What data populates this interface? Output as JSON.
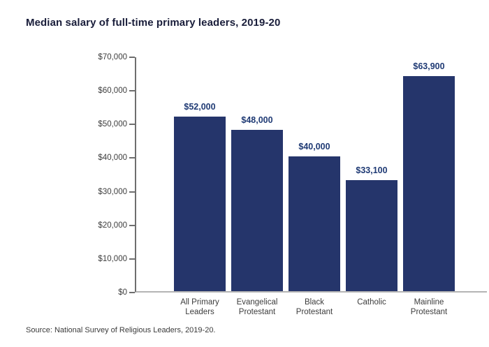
{
  "chart": {
    "title": "Median salary of full-time primary leaders, 2019-20",
    "source": "Source: National Survey of Religious Leaders, 2019-20."
  },
  "chart_data": {
    "type": "bar",
    "title": "Median salary of full-time primary leaders, 2019-20",
    "categories": [
      "All Primary Leaders",
      "Evangelical Protestant",
      "Black Protestant",
      "Catholic",
      "Mainline Protestant"
    ],
    "category_label_lines": [
      [
        "All Primary",
        "Leaders"
      ],
      [
        "Evangelical",
        "Protestant"
      ],
      [
        "Black",
        "Protestant"
      ],
      [
        "Catholic"
      ],
      [
        "Mainline",
        "Protestant"
      ]
    ],
    "values": [
      52000,
      48000,
      40000,
      33100,
      63900
    ],
    "value_labels": [
      "$52,000",
      "$48,000",
      "$40,000",
      "$33,100",
      "$63,900"
    ],
    "xlabel": "",
    "ylabel": "",
    "ylim": [
      0,
      70000
    ],
    "ytick_interval": 10000,
    "ytick_labels": [
      "$0",
      "$10,000",
      "$20,000",
      "$30,000",
      "$40,000",
      "$50,000",
      "$60,000",
      "$70,000"
    ],
    "grid": false,
    "legend": false,
    "colors": {
      "bar": "#25356b",
      "value_label": "#1f3a74",
      "title": "#191d3a",
      "axis": "#6e6e6e",
      "baseline": "#b4b4b4",
      "tick_label": "#3d3d3d"
    },
    "source": "Source: National Survey of Religious Leaders, 2019-20."
  }
}
